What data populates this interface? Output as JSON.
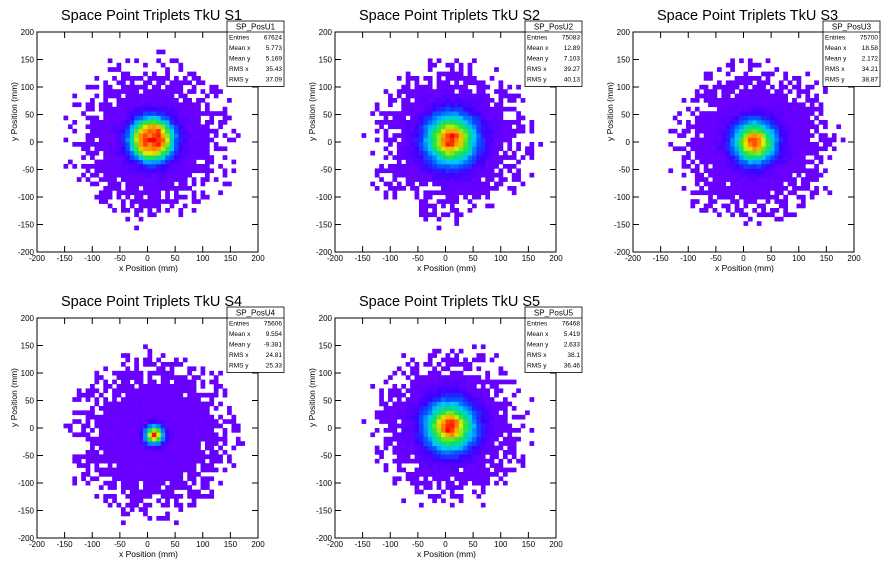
{
  "chart_data": [
    {
      "type": "heatmap",
      "title": "Space Point Triplets TkU S1",
      "xlabel": "x Position (mm)",
      "ylabel": "y Position (mm)",
      "xlim": [
        -200,
        200
      ],
      "ylim": [
        -200,
        200
      ],
      "xticks": [
        -200,
        -150,
        -100,
        -50,
        0,
        50,
        100,
        150,
        200
      ],
      "yticks": [
        -200,
        -150,
        -100,
        -50,
        0,
        50,
        100,
        150,
        200
      ],
      "stats": {
        "name": "SP_PosU1",
        "rows": [
          {
            "label": "Entries",
            "value": "67624"
          },
          {
            "label": "Mean x",
            "value": "5.773"
          },
          {
            "label": "Mean y",
            "value": "5.169"
          },
          {
            "label": "RMS x",
            "value": "35.43"
          },
          {
            "label": "RMS y",
            "value": "37.09"
          }
        ]
      },
      "distribution": {
        "center_x": 8,
        "center_y": 5,
        "core_sigma": 28,
        "halo_radius": 150,
        "peak_mode": "ring"
      }
    },
    {
      "type": "heatmap",
      "title": "Space Point Triplets TkU S2",
      "xlabel": "x Position (mm)",
      "ylabel": "y Position (mm)",
      "xlim": [
        -200,
        200
      ],
      "ylim": [
        -200,
        200
      ],
      "xticks": [
        -200,
        -150,
        -100,
        -50,
        0,
        50,
        100,
        150,
        200
      ],
      "yticks": [
        -200,
        -150,
        -100,
        -50,
        0,
        50,
        100,
        150,
        200
      ],
      "stats": {
        "name": "SP_PosU2",
        "rows": [
          {
            "label": "Entries",
            "value": "75083"
          },
          {
            "label": "Mean x",
            "value": "12.89"
          },
          {
            "label": "Mean y",
            "value": "7.103"
          },
          {
            "label": "RMS x",
            "value": "39.27"
          },
          {
            "label": "RMS y",
            "value": "40.13"
          }
        ]
      },
      "distribution": {
        "center_x": 10,
        "center_y": 5,
        "core_sigma": 33,
        "halo_radius": 150,
        "peak_mode": "peak"
      }
    },
    {
      "type": "heatmap",
      "title": "Space Point Triplets TkU S3",
      "xlabel": "x Position (mm)",
      "ylabel": "y Position (mm)",
      "xlim": [
        -200,
        200
      ],
      "ylim": [
        -200,
        200
      ],
      "xticks": [
        -200,
        -150,
        -100,
        -50,
        0,
        50,
        100,
        150,
        200
      ],
      "yticks": [
        -200,
        -150,
        -100,
        -50,
        0,
        50,
        100,
        150,
        200
      ],
      "stats": {
        "name": "SP_PosU3",
        "rows": [
          {
            "label": "Entries",
            "value": "75700"
          },
          {
            "label": "Mean x",
            "value": "18.58"
          },
          {
            "label": "Mean y",
            "value": "2.172"
          },
          {
            "label": "RMS x",
            "value": "34.21"
          },
          {
            "label": "RMS y",
            "value": "38.87"
          }
        ]
      },
      "distribution": {
        "center_x": 20,
        "center_y": 0,
        "core_sigma": 27,
        "halo_radius": 150,
        "peak_mode": "peak"
      }
    },
    {
      "type": "heatmap",
      "title": "Space Point Triplets TkU S4",
      "xlabel": "x Position (mm)",
      "ylabel": "y Position (mm)",
      "xlim": [
        -200,
        200
      ],
      "ylim": [
        -200,
        200
      ],
      "xticks": [
        -200,
        -150,
        -100,
        -50,
        0,
        50,
        100,
        150,
        200
      ],
      "yticks": [
        -200,
        -150,
        -100,
        -50,
        0,
        50,
        100,
        150,
        200
      ],
      "stats": {
        "name": "SP_PosU4",
        "rows": [
          {
            "label": "Entries",
            "value": "75606"
          },
          {
            "label": "Mean x",
            "value": "9.554"
          },
          {
            "label": "Mean y",
            "value": "-9.381"
          },
          {
            "label": "RMS x",
            "value": "24.81"
          },
          {
            "label": "RMS y",
            "value": "25.33"
          }
        ]
      },
      "distribution": {
        "center_x": 12,
        "center_y": -12,
        "core_sigma": 12,
        "halo_radius": 155,
        "peak_mode": "peak"
      }
    },
    {
      "type": "heatmap",
      "title": "Space Point Triplets TkU S5",
      "xlabel": "x Position (mm)",
      "ylabel": "y Position (mm)",
      "xlim": [
        -200,
        200
      ],
      "ylim": [
        -200,
        200
      ],
      "xticks": [
        -200,
        -150,
        -100,
        -50,
        0,
        50,
        100,
        150,
        200
      ],
      "yticks": [
        -200,
        -150,
        -100,
        -50,
        0,
        50,
        100,
        150,
        200
      ],
      "stats": {
        "name": "SP_PosU5",
        "rows": [
          {
            "label": "Entries",
            "value": "76468"
          },
          {
            "label": "Mean x",
            "value": "5.419"
          },
          {
            "label": "Mean y",
            "value": "2.633"
          },
          {
            "label": "RMS x",
            "value": "38.1"
          },
          {
            "label": "RMS y",
            "value": "36.46"
          }
        ]
      },
      "distribution": {
        "center_x": 8,
        "center_y": 3,
        "core_sigma": 32,
        "halo_radius": 145,
        "peak_mode": "peak"
      }
    }
  ]
}
